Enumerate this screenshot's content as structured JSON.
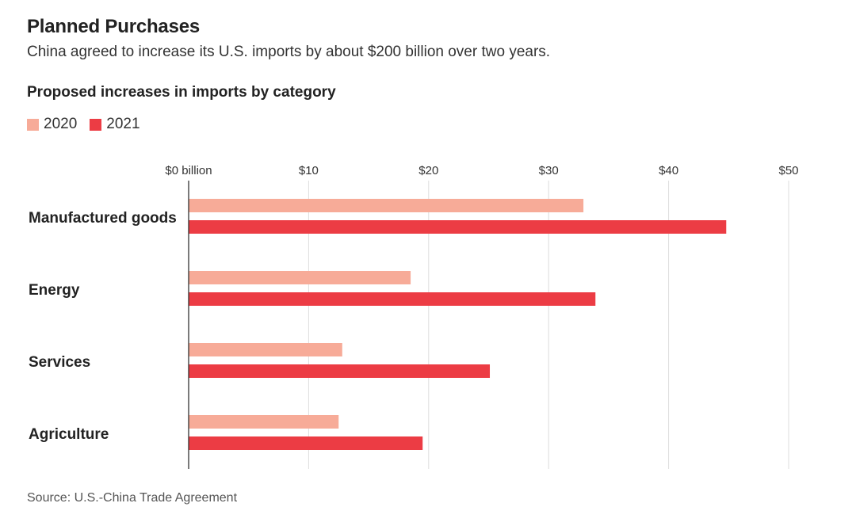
{
  "header": {
    "title": "Planned Purchases",
    "subtitle": "China agreed to increase its U.S. imports by about $200 billion over two years.",
    "section_label": "Proposed increases in imports by category"
  },
  "legend": [
    {
      "label": "2020",
      "color": "#f7ab98"
    },
    {
      "label": "2021",
      "color": "#ec3c44"
    }
  ],
  "footer": {
    "source": "Source: U.S.-China Trade Agreement"
  },
  "chart_data": {
    "type": "bar",
    "orientation": "horizontal",
    "title": "Planned Purchases",
    "subtitle": "China agreed to increase its U.S. imports by about $200 billion over two years.",
    "categories": [
      "Manufactured goods",
      "Energy",
      "Services",
      "Agriculture"
    ],
    "series": [
      {
        "name": "2020",
        "color": "#f7ab98",
        "values": [
          32.9,
          18.5,
          12.8,
          12.5
        ]
      },
      {
        "name": "2021",
        "color": "#ec3c44",
        "values": [
          44.8,
          33.9,
          25.1,
          19.5
        ]
      }
    ],
    "xlim": [
      0,
      50
    ],
    "xticks": [
      0,
      10,
      20,
      30,
      40,
      50
    ],
    "xtick_labels": [
      "$0 billion",
      "$10",
      "$20",
      "$30",
      "$40",
      "$50"
    ],
    "axis_position": "top",
    "grid": true,
    "legend_position": "top-left"
  }
}
